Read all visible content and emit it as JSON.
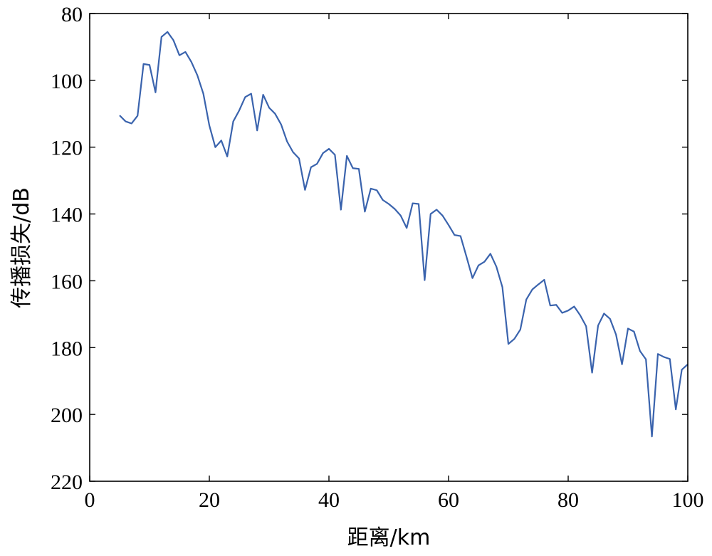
{
  "chart_data": {
    "type": "line",
    "title": "",
    "xlabel": "距离/km",
    "ylabel": "传播损失/dB",
    "xlim": [
      0,
      100
    ],
    "ylim": [
      80,
      220
    ],
    "y_reversed": true,
    "grid": false,
    "line_color": "#3a63ad",
    "xticks": [
      0,
      20,
      40,
      60,
      80,
      100
    ],
    "yticks": [
      80,
      100,
      120,
      140,
      160,
      180,
      200,
      220
    ],
    "series": [
      {
        "x": [
          5,
          6,
          7,
          8,
          9,
          10,
          11,
          12,
          13,
          14,
          15,
          16,
          17,
          18,
          19,
          20,
          21,
          22,
          23,
          24,
          25,
          26,
          27,
          28,
          29,
          30,
          31,
          32,
          33,
          34,
          35,
          36,
          37,
          38,
          39,
          40,
          41,
          42,
          43,
          44,
          45,
          46,
          47,
          48,
          49,
          50,
          51,
          52,
          53,
          54,
          55,
          56,
          57,
          58,
          59,
          60,
          61,
          62,
          63,
          64,
          65,
          66,
          67,
          68,
          69,
          70,
          71,
          72,
          73,
          74,
          75,
          76,
          77,
          78,
          79,
          80,
          81,
          82,
          83,
          84,
          85,
          86,
          87,
          88,
          89,
          90,
          91,
          92,
          93,
          94,
          95,
          96,
          97,
          98,
          99,
          100
        ],
        "values": [
          110.5,
          112.3,
          112.9,
          110.6,
          95.1,
          95.4,
          103.6,
          87.0,
          85.5,
          88.0,
          92.5,
          91.5,
          94.5,
          98.5,
          104.0,
          113.5,
          120.0,
          118.0,
          122.8,
          112.3,
          109.0,
          105.0,
          104.0,
          115.0,
          104.3,
          108.2,
          110.0,
          113.2,
          118.3,
          121.5,
          123.4,
          132.8,
          126.0,
          125.0,
          121.8,
          120.5,
          122.3,
          138.7,
          122.6,
          126.3,
          126.5,
          139.3,
          132.4,
          132.9,
          135.8,
          137.0,
          138.5,
          140.5,
          144.2,
          136.8,
          137.0,
          159.8,
          140.0,
          138.7,
          140.5,
          143.3,
          146.3,
          146.6,
          152.8,
          159.2,
          155.4,
          154.3,
          151.9,
          155.8,
          161.9,
          178.9,
          177.4,
          174.6,
          165.6,
          162.6,
          161.1,
          159.7,
          167.4,
          167.2,
          169.6,
          168.9,
          167.7,
          170.3,
          173.6,
          187.5,
          173.4,
          169.8,
          171.4,
          176.1,
          185.0,
          174.3,
          175.2,
          181.0,
          183.5,
          206.6,
          181.9,
          182.8,
          183.4,
          198.5,
          186.6,
          185.0
        ]
      }
    ]
  }
}
